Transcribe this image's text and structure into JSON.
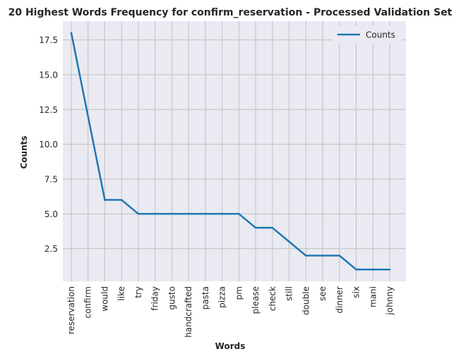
{
  "chart_data": {
    "type": "line",
    "title": "20 Highest Words Frequency for confirm_reservation - Processed Validation Set",
    "xlabel": "Words",
    "ylabel": "Counts",
    "categories": [
      "reservation",
      "confirm",
      "would",
      "like",
      "try",
      "friday",
      "gusto",
      "handcrafted",
      "pasta",
      "pizza",
      "pm",
      "please",
      "check",
      "still",
      "double",
      "see",
      "dinner",
      "six",
      "mani",
      "johnny"
    ],
    "series": [
      {
        "name": "Counts",
        "values": [
          18,
          12,
          6,
          6,
          5,
          5,
          5,
          5,
          5,
          5,
          5,
          4,
          4,
          3,
          2,
          2,
          2,
          1,
          1,
          1
        ]
      }
    ],
    "yticks": [
      "2.5",
      "5.0",
      "7.5",
      "10.0",
      "12.5",
      "15.0",
      "17.5"
    ],
    "ylim": [
      0.15,
      18.85
    ],
    "grid": true,
    "legend_position": "top-right",
    "colors": {
      "line": "#1f77b4",
      "plot_background": "#eaeaf2",
      "grid": "#c0c0c0",
      "text": "#262626"
    }
  }
}
